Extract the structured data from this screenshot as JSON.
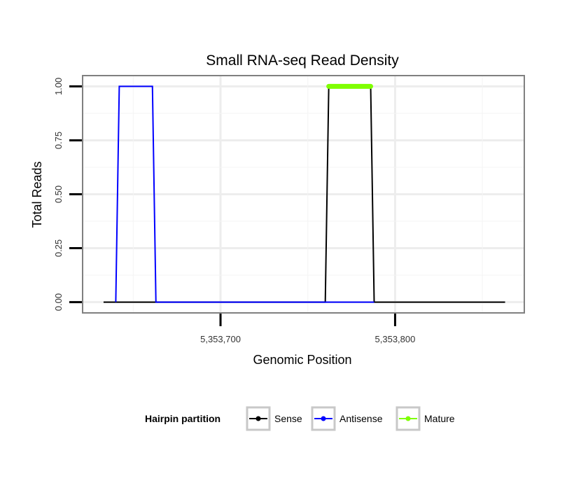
{
  "chart_data": {
    "type": "line",
    "title": "Small RNA-seq Read Density",
    "xlabel": "Genomic Position",
    "ylabel": "Total Reads",
    "xlim": [
      5353621,
      5353874
    ],
    "ylim": [
      -0.05,
      1.05
    ],
    "x_ticks": [
      5353700,
      5353800
    ],
    "x_tick_labels": [
      "5,353,700",
      "5,353,800"
    ],
    "y_ticks": [
      0,
      0.25,
      0.5,
      0.75,
      1.0
    ],
    "y_tick_labels": [
      "0.00",
      "0.25",
      "0.50",
      "0.75",
      "1.00"
    ],
    "grid": true,
    "legend_position": "bottom",
    "legend_title": "Hairpin partition",
    "series": [
      {
        "name": "Sense",
        "color": "#000000",
        "x": [
          5353633,
          5353760,
          5353762,
          5353786,
          5353788,
          5353863
        ],
        "y": [
          0,
          0,
          1,
          1,
          0,
          0
        ]
      },
      {
        "name": "Antisense",
        "color": "#0000ff",
        "x": [
          5353640,
          5353642,
          5353661,
          5353663,
          5353760,
          5353788
        ],
        "y": [
          0,
          1,
          1,
          0,
          0,
          0
        ]
      },
      {
        "name": "Mature",
        "color": "#7fff00",
        "x": [
          5353762,
          5353786
        ],
        "y": [
          1,
          1
        ]
      }
    ]
  }
}
